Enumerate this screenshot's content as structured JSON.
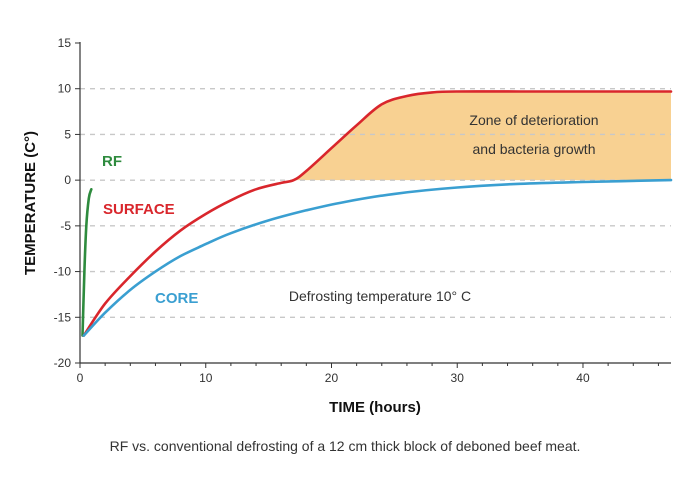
{
  "chart_data": {
    "type": "line",
    "xlabel": "TIME (hours)",
    "ylabel": "TEMPERATURE (C°)",
    "xlim": [
      0,
      47
    ],
    "ylim": [
      -20,
      15
    ],
    "x_ticks": [
      0,
      10,
      20,
      30,
      40
    ],
    "y_ticks": [
      -20,
      -15,
      -10,
      -5,
      0,
      5,
      10,
      15
    ],
    "dashed_gridlines_y": [
      -15,
      -10,
      -5,
      0,
      5,
      10
    ],
    "series": [
      {
        "name": "RF",
        "color": "#2e8b3e",
        "x": [
          0.2,
          0.35,
          0.5,
          0.7,
          0.9
        ],
        "y": [
          -17,
          -10,
          -5,
          -2,
          -1
        ]
      },
      {
        "name": "SURFACE",
        "color": "#d9262c",
        "x": [
          0.3,
          2,
          4,
          6,
          8,
          10,
          12,
          14,
          16,
          17,
          18,
          20,
          22,
          24,
          26,
          28,
          30,
          35,
          40,
          47
        ],
        "y": [
          -17,
          -13.5,
          -10.5,
          -7.8,
          -5.5,
          -3.7,
          -2.2,
          -1,
          -0.3,
          0,
          1,
          3.5,
          6,
          8.3,
          9.2,
          9.6,
          9.7,
          9.7,
          9.7,
          9.7
        ]
      },
      {
        "name": "CORE",
        "color": "#3a9fd1",
        "x": [
          0.3,
          2,
          4,
          6,
          8,
          10,
          12,
          15,
          18,
          21,
          25,
          30,
          35,
          40,
          47
        ],
        "y": [
          -17,
          -14.5,
          -12,
          -10,
          -8.3,
          -7,
          -5.8,
          -4.4,
          -3.3,
          -2.4,
          -1.5,
          -0.8,
          -0.4,
          -0.2,
          0
        ]
      }
    ],
    "shaded_region": {
      "label_lines": [
        "Zone of deterioration",
        "and bacteria growth"
      ],
      "color": "#f8d192",
      "from_x": 17,
      "to_x": 47,
      "lower_y": 0
    },
    "annotations": {
      "defrost_note": "Defrosting temperature 10° C"
    }
  },
  "caption": "RF vs. conventional defrosting of a 12 cm thick block of deboned beef meat."
}
